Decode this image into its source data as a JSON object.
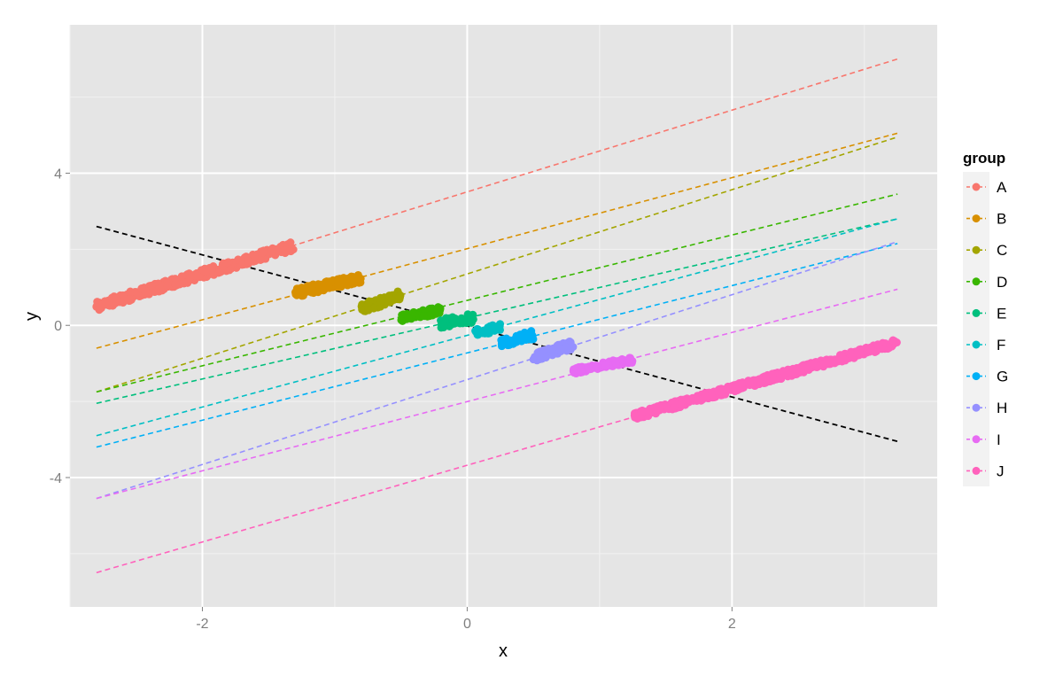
{
  "chart_data": {
    "type": "scatter",
    "xlabel": "x",
    "ylabel": "y",
    "xlim": [
      -3.0,
      3.55
    ],
    "ylim": [
      -7.4,
      7.9
    ],
    "x_ticks": [
      -2,
      0,
      2
    ],
    "x_tick_labels": [
      "-2",
      "0",
      "2"
    ],
    "y_ticks": [
      -4,
      0,
      4
    ],
    "y_tick_labels": [
      "-4",
      "0",
      "4"
    ],
    "grid": true,
    "background": "#e5e5e5",
    "legend": {
      "title": "group",
      "placement": "right"
    },
    "overall_trend": {
      "color": "#000000",
      "style": "dashed",
      "x": [
        -2.8,
        3.25
      ],
      "y": [
        2.6,
        -3.05
      ]
    },
    "series": [
      {
        "name": "A",
        "color": "#F8766D",
        "line": {
          "x": [
            -2.8,
            3.25
          ],
          "y": [
            0.5,
            7.0
          ]
        },
        "cluster": {
          "x": [
            -2.8,
            -1.3
          ],
          "y_center": [
            0.5,
            2.1
          ],
          "spread": 0.12
        }
      },
      {
        "name": "B",
        "color": "#D89000",
        "line": {
          "x": [
            -2.8,
            3.25
          ],
          "y": [
            -0.6,
            5.05
          ]
        },
        "cluster": {
          "x": [
            -1.3,
            -0.8
          ],
          "y_center": [
            0.85,
            1.25
          ],
          "spread": 0.12
        }
      },
      {
        "name": "C",
        "color": "#A3A500",
        "line": {
          "x": [
            -2.8,
            3.25
          ],
          "y": [
            -1.75,
            4.95
          ]
        },
        "cluster": {
          "x": [
            -0.8,
            -0.5
          ],
          "y_center": [
            0.45,
            0.8
          ],
          "spread": 0.13
        }
      },
      {
        "name": "D",
        "color": "#39B600",
        "line": {
          "x": [
            -2.8,
            3.25
          ],
          "y": [
            -1.75,
            3.45
          ]
        },
        "cluster": {
          "x": [
            -0.5,
            -0.2
          ],
          "y_center": [
            0.2,
            0.4
          ],
          "spread": 0.1
        }
      },
      {
        "name": "E",
        "color": "#00BF7D",
        "line": {
          "x": [
            -2.8,
            3.25
          ],
          "y": [
            -2.05,
            2.8
          ]
        },
        "cluster": {
          "x": [
            -0.2,
            0.05
          ],
          "y_center": [
            0.05,
            0.2
          ],
          "spread": 0.12
        }
      },
      {
        "name": "F",
        "color": "#00BFC4",
        "line": {
          "x": [
            -2.8,
            3.25
          ],
          "y": [
            -2.9,
            2.8
          ]
        },
        "cluster": {
          "x": [
            0.05,
            0.25
          ],
          "y_center": [
            -0.2,
            -0.05
          ],
          "spread": 0.1
        }
      },
      {
        "name": "G",
        "color": "#00B0F6",
        "line": {
          "x": [
            -2.8,
            3.25
          ],
          "y": [
            -3.2,
            2.15
          ]
        },
        "cluster": {
          "x": [
            0.25,
            0.5
          ],
          "y_center": [
            -0.45,
            -0.25
          ],
          "spread": 0.12
        }
      },
      {
        "name": "H",
        "color": "#9590FF",
        "line": {
          "x": [
            -2.8,
            3.25
          ],
          "y": [
            -4.55,
            2.2
          ]
        },
        "cluster": {
          "x": [
            0.5,
            0.8
          ],
          "y_center": [
            -0.85,
            -0.5
          ],
          "spread": 0.12
        }
      },
      {
        "name": "I",
        "color": "#E76BF3",
        "line": {
          "x": [
            -2.8,
            3.25
          ],
          "y": [
            -4.55,
            0.95
          ]
        },
        "cluster": {
          "x": [
            0.8,
            1.25
          ],
          "y_center": [
            -1.2,
            -0.9
          ],
          "spread": 0.08
        }
      },
      {
        "name": "J",
        "color": "#FF62BC",
        "line": {
          "x": [
            -2.8,
            3.25
          ],
          "y": [
            -6.5,
            -0.4
          ]
        },
        "cluster": {
          "x": [
            1.25,
            3.25
          ],
          "y_center": [
            -2.4,
            -0.45
          ],
          "spread": 0.1
        }
      }
    ]
  }
}
